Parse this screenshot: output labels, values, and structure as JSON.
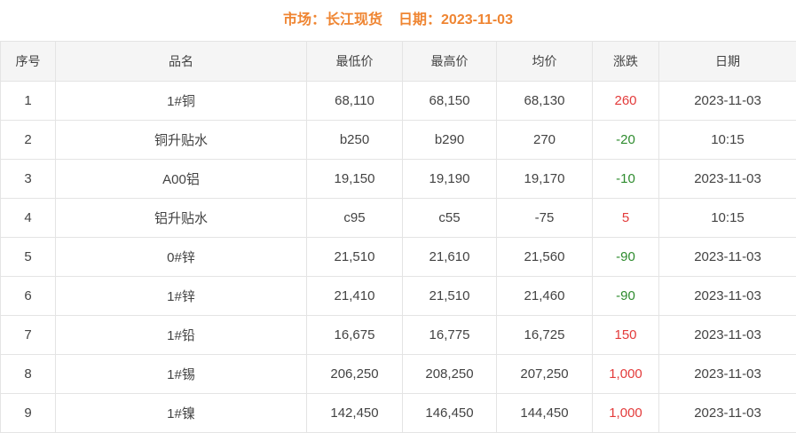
{
  "header": {
    "market_label": "市场：长江现货",
    "date_label": "日期：2023-11-03"
  },
  "colors": {
    "accent_orange": "#ef8532",
    "up_red": "#e33b3b",
    "down_green": "#2e8b2e"
  },
  "table": {
    "headers": [
      "序号",
      "品名",
      "最低价",
      "最高价",
      "均价",
      "涨跌",
      "日期"
    ],
    "rows": [
      {
        "no": "1",
        "name": "1#铜",
        "low": "68,110",
        "high": "68,150",
        "avg": "68,130",
        "change": "260",
        "dir": "up",
        "date": "2023-11-03"
      },
      {
        "no": "2",
        "name": "铜升贴水",
        "low": "b250",
        "high": "b290",
        "avg": "270",
        "change": "-20",
        "dir": "down",
        "date": "10:15"
      },
      {
        "no": "3",
        "name": "A00铝",
        "low": "19,150",
        "high": "19,190",
        "avg": "19,170",
        "change": "-10",
        "dir": "down",
        "date": "2023-11-03"
      },
      {
        "no": "4",
        "name": "铝升贴水",
        "low": "c95",
        "high": "c55",
        "avg": "-75",
        "change": "5",
        "dir": "up",
        "date": "10:15"
      },
      {
        "no": "5",
        "name": "0#锌",
        "low": "21,510",
        "high": "21,610",
        "avg": "21,560",
        "change": "-90",
        "dir": "down",
        "date": "2023-11-03"
      },
      {
        "no": "6",
        "name": "1#锌",
        "low": "21,410",
        "high": "21,510",
        "avg": "21,460",
        "change": "-90",
        "dir": "down",
        "date": "2023-11-03"
      },
      {
        "no": "7",
        "name": "1#铅",
        "low": "16,675",
        "high": "16,775",
        "avg": "16,725",
        "change": "150",
        "dir": "up",
        "date": "2023-11-03"
      },
      {
        "no": "8",
        "name": "1#锡",
        "low": "206,250",
        "high": "208,250",
        "avg": "207,250",
        "change": "1,000",
        "dir": "up",
        "date": "2023-11-03"
      },
      {
        "no": "9",
        "name": "1#镍",
        "low": "142,450",
        "high": "146,450",
        "avg": "144,450",
        "change": "1,000",
        "dir": "up",
        "date": "2023-11-03"
      }
    ]
  }
}
